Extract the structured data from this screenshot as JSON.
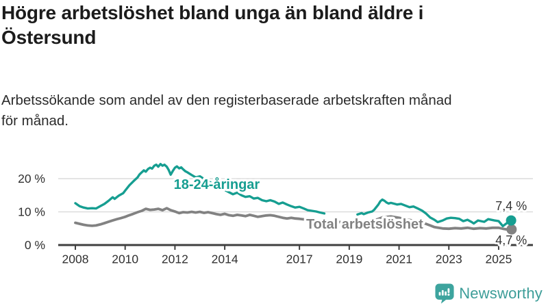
{
  "header": {
    "title_lines": [
      "Högre arbetslöshet bland unga än bland äldre i",
      "Östersund"
    ],
    "subtitle_lines": [
      "Arbetssökande som andel av den registerbaserade arbetskraften månad",
      "för månad."
    ]
  },
  "logo": {
    "text": "Newsworthy"
  },
  "colors": {
    "title_text": "#1c1c1c",
    "subtitle_text": "#2b2b2b",
    "young_series": "#169E91",
    "total_series": "#828282",
    "axis": "#3f3f3f",
    "gridline": "#dcdcdc",
    "tick_label": "#303030",
    "end_label": "#343434",
    "logo_teal": "#3DA49E",
    "background": "#ffffff"
  },
  "chart_data": {
    "type": "line",
    "x_ticks": [
      2008,
      2010,
      2012,
      2014,
      2017,
      2019,
      2021,
      2023,
      2025
    ],
    "y_ticks": [
      {
        "value": 0,
        "label": "0 %"
      },
      {
        "value": 10,
        "label": "10 %"
      },
      {
        "value": 20,
        "label": "20 %"
      }
    ],
    "grid_values": [
      10,
      20
    ],
    "xlim": [
      2007.3,
      2026.4
    ],
    "ylim": [
      0,
      25.5
    ],
    "legend_position": "inline-labels",
    "series": [
      {
        "name": "Total arbetslöshet",
        "color": "#828282",
        "line_width": 3.8,
        "label_at": [
          2017.27,
          4.95
        ],
        "end": {
          "label": "4,7 %",
          "value": 4.7,
          "label_at": [
            2024.87,
            0.25
          ]
        },
        "segments": [
          [
            [
              2008.0,
              6.7
            ],
            [
              2008.17,
              6.4
            ],
            [
              2008.33,
              6.1
            ],
            [
              2008.5,
              5.9
            ],
            [
              2008.67,
              5.8
            ],
            [
              2008.83,
              5.9
            ],
            [
              2009.0,
              6.2
            ],
            [
              2009.17,
              6.6
            ],
            [
              2009.33,
              7.0
            ],
            [
              2009.5,
              7.4
            ],
            [
              2009.67,
              7.8
            ],
            [
              2009.83,
              8.1
            ],
            [
              2010.0,
              8.5
            ],
            [
              2010.17,
              9.0
            ],
            [
              2010.33,
              9.4
            ],
            [
              2010.5,
              9.9
            ],
            [
              2010.67,
              10.3
            ],
            [
              2010.83,
              10.9
            ],
            [
              2011.0,
              10.6
            ],
            [
              2011.17,
              10.7
            ],
            [
              2011.33,
              10.9
            ],
            [
              2011.5,
              10.5
            ],
            [
              2011.67,
              11.1
            ],
            [
              2011.83,
              10.5
            ],
            [
              2012.0,
              10.1
            ],
            [
              2012.17,
              9.6
            ],
            [
              2012.33,
              9.9
            ],
            [
              2012.5,
              9.8
            ],
            [
              2012.67,
              10.0
            ],
            [
              2012.83,
              9.8
            ],
            [
              2013.0,
              10.0
            ],
            [
              2013.17,
              9.7
            ],
            [
              2013.33,
              9.9
            ],
            [
              2013.5,
              9.6
            ],
            [
              2013.67,
              9.3
            ],
            [
              2013.83,
              9.1
            ],
            [
              2014.0,
              9.4
            ],
            [
              2014.17,
              9.0
            ],
            [
              2014.33,
              8.8
            ],
            [
              2014.5,
              9.1
            ],
            [
              2014.67,
              8.9
            ],
            [
              2014.83,
              8.7
            ],
            [
              2015.0,
              9.1
            ],
            [
              2015.17,
              8.8
            ],
            [
              2015.33,
              8.5
            ],
            [
              2015.5,
              8.7
            ],
            [
              2015.67,
              8.9
            ],
            [
              2015.83,
              9.0
            ],
            [
              2016.0,
              8.8
            ],
            [
              2016.17,
              8.5
            ],
            [
              2016.33,
              8.2
            ],
            [
              2016.5,
              8.0
            ],
            [
              2016.67,
              8.2
            ],
            [
              2016.83,
              8.0
            ],
            [
              2017.0,
              7.9
            ],
            [
              2017.33,
              7.6
            ],
            [
              2017.67,
              7.4
            ],
            [
              2018.0,
              7.2
            ],
            [
              2018.33,
              7.0
            ],
            [
              2018.67,
              6.9
            ],
            [
              2019.0,
              6.9
            ],
            [
              2019.33,
              7.0
            ],
            [
              2019.67,
              7.1
            ],
            [
              2020.0,
              7.4
            ],
            [
              2020.33,
              8.3
            ],
            [
              2020.67,
              8.6
            ],
            [
              2021.0,
              8.2
            ],
            [
              2021.33,
              7.7
            ],
            [
              2021.67,
              7.2
            ],
            [
              2022.0,
              6.6
            ],
            [
              2022.25,
              5.9
            ],
            [
              2022.42,
              5.4
            ],
            [
              2022.58,
              5.2
            ],
            [
              2022.75,
              5.0
            ],
            [
              2023.0,
              4.9
            ],
            [
              2023.25,
              5.1
            ],
            [
              2023.5,
              5.0
            ],
            [
              2023.75,
              5.2
            ],
            [
              2024.0,
              4.9
            ],
            [
              2024.25,
              5.1
            ],
            [
              2024.5,
              5.0
            ],
            [
              2024.75,
              5.2
            ],
            [
              2025.0,
              5.2
            ],
            [
              2025.17,
              4.9
            ],
            [
              2025.33,
              4.7
            ],
            [
              2025.52,
              4.7
            ]
          ]
        ]
      },
      {
        "name": "18-24-åringar",
        "color": "#169E91",
        "line_width": 3.4,
        "label_at": [
          2011.95,
          16.9
        ],
        "end": {
          "label": "7,4 %",
          "value": 7.4,
          "label_at": [
            2024.87,
            10.5
          ]
        },
        "segments": [
          [
            [
              2008.0,
              12.6
            ],
            [
              2008.17,
              11.7
            ],
            [
              2008.33,
              11.3
            ],
            [
              2008.5,
              11.0
            ],
            [
              2008.67,
              11.1
            ],
            [
              2008.83,
              11.0
            ],
            [
              2009.0,
              11.7
            ],
            [
              2009.17,
              12.4
            ],
            [
              2009.33,
              13.3
            ],
            [
              2009.5,
              14.4
            ],
            [
              2009.58,
              13.9
            ],
            [
              2009.75,
              14.9
            ],
            [
              2009.92,
              15.6
            ],
            [
              2010.0,
              16.4
            ],
            [
              2010.17,
              18.0
            ],
            [
              2010.33,
              19.2
            ],
            [
              2010.5,
              20.4
            ],
            [
              2010.58,
              21.3
            ],
            [
              2010.75,
              22.5
            ],
            [
              2010.83,
              22.1
            ],
            [
              2010.92,
              22.9
            ],
            [
              2011.0,
              23.3
            ],
            [
              2011.08,
              23.0
            ],
            [
              2011.17,
              23.9
            ],
            [
              2011.25,
              24.2
            ],
            [
              2011.33,
              23.6
            ],
            [
              2011.42,
              24.4
            ],
            [
              2011.5,
              23.9
            ],
            [
              2011.58,
              24.2
            ],
            [
              2011.67,
              23.6
            ],
            [
              2011.75,
              22.6
            ],
            [
              2011.83,
              21.2
            ],
            [
              2011.92,
              22.4
            ],
            [
              2012.0,
              23.3
            ],
            [
              2012.08,
              23.7
            ],
            [
              2012.17,
              23.1
            ],
            [
              2012.25,
              23.4
            ],
            [
              2012.33,
              22.8
            ],
            [
              2012.42,
              22.2
            ],
            [
              2012.5,
              21.9
            ],
            [
              2012.67,
              21.1
            ],
            [
              2012.83,
              20.4
            ],
            [
              2013.0,
              20.7
            ],
            [
              2013.17,
              19.9
            ],
            [
              2013.33,
              19.3
            ],
            [
              2013.5,
              18.5
            ],
            [
              2013.67,
              17.7
            ],
            [
              2013.83,
              17.0
            ],
            [
              2014.0,
              16.6
            ],
            [
              2014.17,
              15.9
            ],
            [
              2014.33,
              15.3
            ],
            [
              2014.5,
              15.8
            ],
            [
              2014.67,
              15.0
            ],
            [
              2014.83,
              14.5
            ],
            [
              2015.0,
              14.7
            ],
            [
              2015.17,
              14.0
            ],
            [
              2015.33,
              14.2
            ],
            [
              2015.5,
              13.5
            ],
            [
              2015.67,
              13.2
            ],
            [
              2015.83,
              13.5
            ],
            [
              2016.0,
              13.1
            ],
            [
              2016.17,
              12.4
            ],
            [
              2016.33,
              12.8
            ],
            [
              2016.5,
              12.2
            ],
            [
              2016.67,
              11.7
            ],
            [
              2016.83,
              11.3
            ],
            [
              2017.0,
              11.5
            ],
            [
              2017.17,
              11.0
            ],
            [
              2017.33,
              10.5
            ],
            [
              2017.5,
              10.3
            ],
            [
              2017.67,
              10.1
            ],
            [
              2017.83,
              9.8
            ],
            [
              2018.0,
              9.5
            ]
          ],
          [
            [
              2019.33,
              9.2
            ],
            [
              2019.5,
              9.6
            ],
            [
              2019.58,
              9.3
            ],
            [
              2019.75,
              9.8
            ],
            [
              2019.92,
              10.1
            ],
            [
              2020.0,
              10.6
            ],
            [
              2020.17,
              12.2
            ],
            [
              2020.25,
              13.2
            ],
            [
              2020.33,
              13.7
            ],
            [
              2020.42,
              13.3
            ],
            [
              2020.5,
              12.8
            ],
            [
              2020.58,
              12.5
            ],
            [
              2020.67,
              12.7
            ],
            [
              2020.83,
              12.4
            ],
            [
              2020.92,
              12.2
            ],
            [
              2021.08,
              12.4
            ],
            [
              2021.25,
              11.9
            ],
            [
              2021.42,
              11.4
            ],
            [
              2021.58,
              11.6
            ],
            [
              2021.75,
              11.0
            ],
            [
              2021.92,
              10.4
            ],
            [
              2022.08,
              9.5
            ],
            [
              2022.25,
              8.3
            ],
            [
              2022.42,
              7.6
            ],
            [
              2022.55,
              6.9
            ],
            [
              2022.75,
              7.4
            ],
            [
              2022.92,
              8.0
            ],
            [
              2023.08,
              8.2
            ],
            [
              2023.25,
              8.1
            ],
            [
              2023.42,
              7.9
            ],
            [
              2023.58,
              7.2
            ],
            [
              2023.75,
              7.6
            ],
            [
              2023.92,
              6.9
            ],
            [
              2024.0,
              6.5
            ],
            [
              2024.17,
              7.4
            ],
            [
              2024.42,
              7.0
            ],
            [
              2024.58,
              7.8
            ],
            [
              2024.83,
              7.4
            ],
            [
              2025.0,
              7.2
            ],
            [
              2025.17,
              5.7
            ],
            [
              2025.33,
              6.6
            ],
            [
              2025.5,
              7.4
            ]
          ]
        ]
      }
    ]
  }
}
